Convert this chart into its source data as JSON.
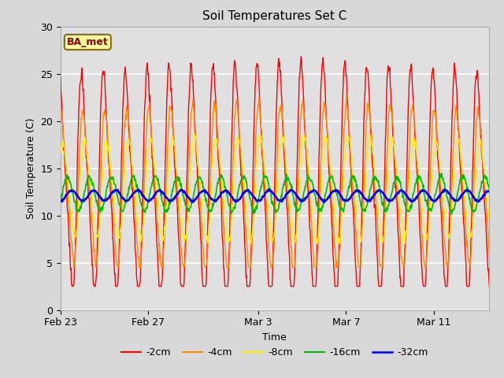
{
  "title": "Soil Temperatures Set C",
  "xlabel": "Time",
  "ylabel": "Soil Temperature (C)",
  "ylim": [
    0,
    30
  ],
  "yticks": [
    0,
    5,
    10,
    15,
    20,
    25,
    30
  ],
  "background_color": "#d8d8d8",
  "plot_bg_color": "#e0e0e0",
  "grid_color": "#ffffff",
  "legend_label": "BA_met",
  "legend_box_color": "#ffff99",
  "legend_box_edge": "#8B6914",
  "legend_text_color": "#8B0000",
  "series_colors": [
    "#ff0000",
    "#ff8800",
    "#ffee00",
    "#00bb00",
    "#0000ff"
  ],
  "series_labels": [
    "-2cm",
    "-4cm",
    "-8cm",
    "-16cm",
    "-32cm"
  ],
  "series_linewidths": [
    1.0,
    1.0,
    1.0,
    1.2,
    1.8
  ],
  "date_tick_positions": [
    0,
    4,
    9,
    13,
    17
  ],
  "date_labels": [
    "Feb 23",
    "Feb 27",
    "Mar 3",
    "Mar 7",
    "Mar 11"
  ],
  "xlim_days": 19.5,
  "n_days": 20,
  "pts_per_day": 48
}
